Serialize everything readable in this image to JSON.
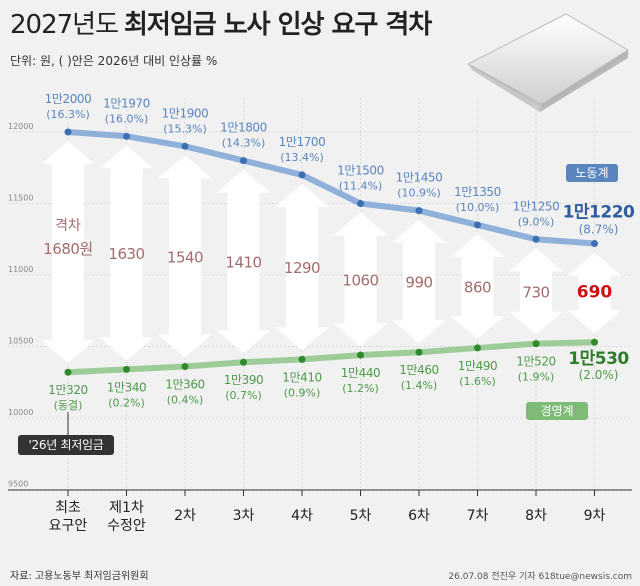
{
  "header": {
    "title_plain": "2027년도",
    "title_bold": "최저임금 노사 인상 요구 격차",
    "subtitle": "단위: 원, ( )안은 2026년 대비 인상률 %"
  },
  "footer": {
    "source": "자료: 고용노동부 최저임금위원회",
    "credit": "26.07.08 전진우 기자 618tue@newsis.com"
  },
  "chart_data": {
    "type": "line",
    "categories": [
      "최초\n요구안",
      "제1차\n수정안",
      "2차",
      "3차",
      "4차",
      "5차",
      "6차",
      "7차",
      "8차",
      "9차"
    ],
    "yticks": [
      9500,
      10000,
      10500,
      11000,
      11500,
      12000
    ],
    "ylim": [
      9500,
      12300
    ],
    "grid": true,
    "series": [
      {
        "name": "노동계",
        "color": "#8fb0d8",
        "label_color": "#5a86bd",
        "values": [
          12000,
          11970,
          11900,
          11800,
          11700,
          11500,
          11450,
          11350,
          11250,
          11220
        ],
        "value_labels": [
          "1만2000",
          "1만1970",
          "1만1900",
          "1만1800",
          "1만1700",
          "1만1500",
          "1만1450",
          "1만1350",
          "1만1250",
          "1만1220"
        ],
        "rate_labels": [
          "(16.3%)",
          "(16.0%)",
          "(15.3%)",
          "(14.3%)",
          "(13.4%)",
          "(11.4%)",
          "(10.9%)",
          "(10.0%)",
          "(9.0%)",
          "(8.7%)"
        ]
      },
      {
        "name": "경영계",
        "color": "#9dcc98",
        "label_color": "#4f9a4b",
        "values": [
          10320,
          10340,
          10360,
          10390,
          10410,
          10440,
          10460,
          10490,
          10520,
          10530
        ],
        "value_labels": [
          "1만320",
          "1만340",
          "1만360",
          "1만390",
          "1만410",
          "1만440",
          "1만460",
          "1만490",
          "1만520",
          "1만530"
        ],
        "rate_labels": [
          "(동결)",
          "(0.2%)",
          "(0.4%)",
          "(0.7%)",
          "(0.9%)",
          "(1.2%)",
          "(1.4%)",
          "(1.6%)",
          "(1.9%)",
          "(2.0%)"
        ]
      }
    ],
    "gap": {
      "label_prefix": "격차",
      "unit": "원",
      "values": [
        1680,
        1630,
        1540,
        1410,
        1290,
        1060,
        990,
        860,
        730,
        690
      ],
      "value_labels": [
        "1680",
        "1630",
        "1540",
        "1410",
        "1290",
        "1060",
        "990",
        "860",
        "730",
        "690"
      ],
      "color": "#a46c6c",
      "highlight_color": "#cc1111"
    },
    "annotation": {
      "text": "'26년 최저임금",
      "value": 10320
    }
  }
}
